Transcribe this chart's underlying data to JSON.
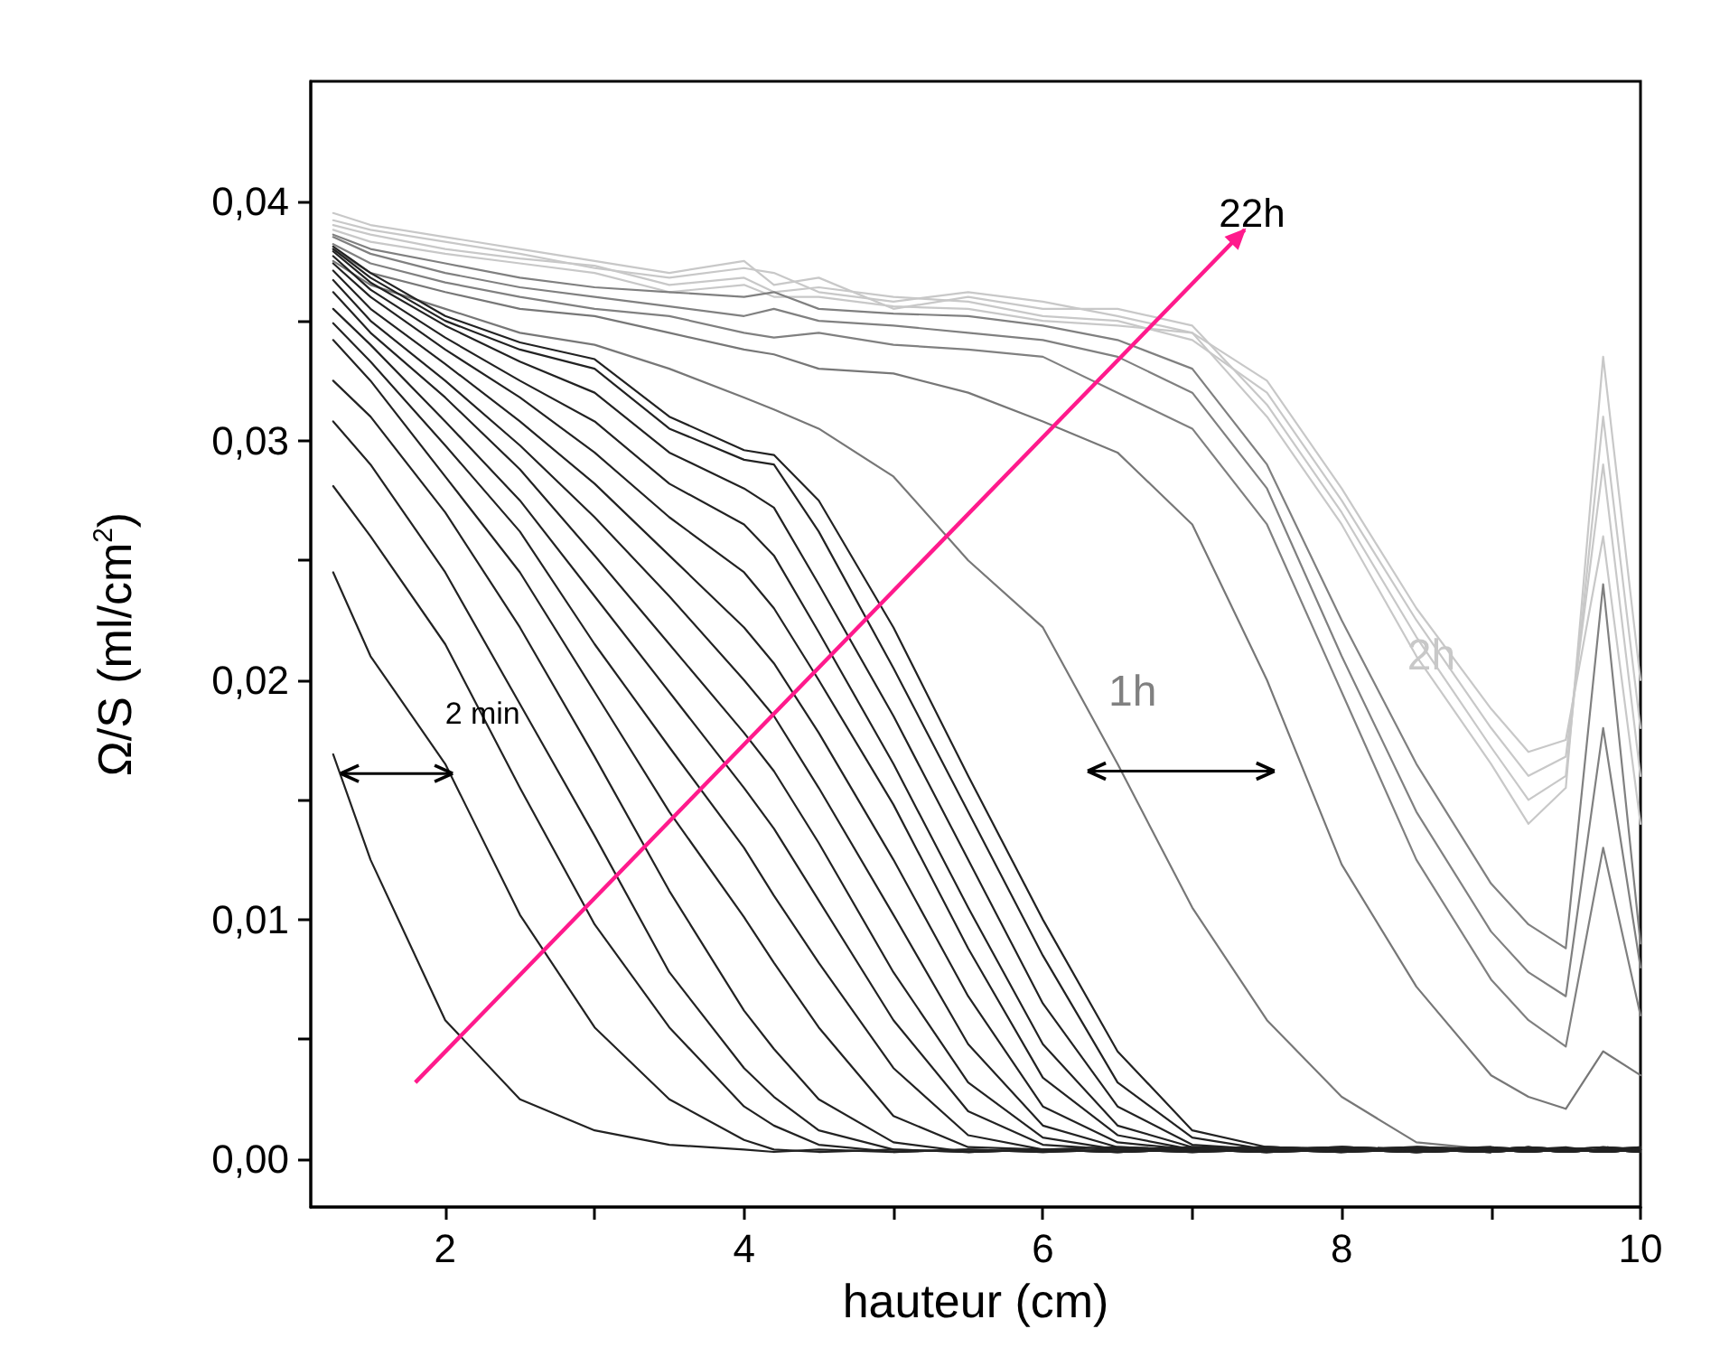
{
  "chart_data": {
    "type": "line",
    "xlabel": "hauteur (cm)",
    "ylabel": "Ω/S (ml/cm$^{2}$)",
    "xlim": [
      1.1,
      10
    ],
    "ylim": [
      -0.002,
      0.045
    ],
    "xticks": [
      2,
      4,
      6,
      8,
      10
    ],
    "yticks": [
      {
        "value": 0,
        "label": "0,00"
      },
      {
        "value": 0.01,
        "label": "0,01"
      },
      {
        "value": 0.02,
        "label": "0,02"
      },
      {
        "value": 0.03,
        "label": "0,03"
      },
      {
        "value": 0.04,
        "label": "0,04"
      }
    ],
    "grid": false,
    "marker": "none",
    "line_style": "solid",
    "annotations": [
      "22h",
      "2h",
      "1h",
      "2 min"
    ],
    "x": [
      1.25,
      1.5,
      2,
      2.5,
      3,
      3.5,
      4,
      4.2,
      4.5,
      5,
      5.5,
      6,
      6.5,
      7,
      7.5,
      8,
      8.5,
      9,
      9.25,
      9.5,
      9.75,
      10
    ],
    "series": [
      {
        "color": "#c8c8c8",
        "values": [
          0.0392,
          0.0388,
          0.0383,
          0.0378,
          0.0372,
          0.0368,
          0.0372,
          0.037,
          0.0362,
          0.0358,
          0.0362,
          0.0358,
          0.0352,
          0.0345,
          0.031,
          0.0265,
          0.021,
          0.0165,
          0.014,
          0.0155,
          0.0335,
          0.02
        ]
      },
      {
        "color": "#c8c8c8",
        "values": [
          0.0395,
          0.039,
          0.0385,
          0.038,
          0.0375,
          0.037,
          0.0375,
          0.0365,
          0.0368,
          0.0355,
          0.036,
          0.0355,
          0.0355,
          0.0348,
          0.0315,
          0.027,
          0.0218,
          0.0172,
          0.015,
          0.016,
          0.031,
          0.018
        ]
      },
      {
        "color": "#c8c8c8",
        "values": [
          0.039,
          0.0386,
          0.038,
          0.0376,
          0.0373,
          0.0365,
          0.0368,
          0.0362,
          0.0364,
          0.036,
          0.0358,
          0.0352,
          0.035,
          0.0342,
          0.032,
          0.0275,
          0.0225,
          0.018,
          0.016,
          0.0168,
          0.029,
          0.016
        ]
      },
      {
        "color": "#c8c8c8",
        "values": [
          0.0388,
          0.0383,
          0.0378,
          0.0374,
          0.037,
          0.0362,
          0.0365,
          0.036,
          0.036,
          0.0356,
          0.0355,
          0.035,
          0.0348,
          0.0345,
          0.0325,
          0.028,
          0.023,
          0.0188,
          0.017,
          0.0175,
          0.026,
          0.014
        ]
      },
      {
        "color": "#808080",
        "values": [
          0.0386,
          0.038,
          0.0374,
          0.0368,
          0.0364,
          0.0362,
          0.036,
          0.0362,
          0.0355,
          0.0353,
          0.0352,
          0.0348,
          0.0342,
          0.033,
          0.029,
          0.0225,
          0.0165,
          0.0115,
          0.0098,
          0.0088,
          0.024,
          0.009
        ]
      },
      {
        "color": "#808080",
        "values": [
          0.0385,
          0.0378,
          0.037,
          0.0364,
          0.036,
          0.0356,
          0.0352,
          0.0355,
          0.035,
          0.0348,
          0.0345,
          0.0342,
          0.0335,
          0.032,
          0.028,
          0.021,
          0.0145,
          0.0095,
          0.0078,
          0.0068,
          0.018,
          0.008
        ]
      },
      {
        "color": "#808080",
        "values": [
          0.0382,
          0.0374,
          0.0366,
          0.036,
          0.0355,
          0.0352,
          0.0345,
          0.0343,
          0.0345,
          0.034,
          0.0338,
          0.0335,
          0.032,
          0.0305,
          0.0265,
          0.0195,
          0.0125,
          0.0075,
          0.0058,
          0.0047,
          0.013,
          0.006
        ]
      },
      {
        "color": "#777777",
        "values": [
          0.038,
          0.037,
          0.0362,
          0.0355,
          0.0352,
          0.0345,
          0.0338,
          0.0336,
          0.033,
          0.0328,
          0.032,
          0.0308,
          0.0295,
          0.0265,
          0.02,
          0.0123,
          0.0072,
          0.0035,
          0.0026,
          0.0021,
          0.0045,
          0.0035
        ]
      },
      {
        "color": "#777777",
        "values": [
          0.0375,
          0.0365,
          0.0355,
          0.0345,
          0.034,
          0.033,
          0.0318,
          0.0313,
          0.0305,
          0.0285,
          0.025,
          0.0222,
          0.0165,
          0.0105,
          0.0058,
          0.0026,
          0.0007,
          0.0004,
          0.0005,
          0.0004,
          0.0005,
          0.0004
        ]
      },
      {
        "color": "#222222",
        "values": [
          0.0381,
          0.037,
          0.0352,
          0.0341,
          0.0334,
          0.031,
          0.0296,
          0.0294,
          0.0275,
          0.0222,
          0.016,
          0.01,
          0.0045,
          0.0012,
          0.0005,
          0.0004,
          0.0003,
          0.0004,
          0.0005,
          0.0004,
          0.0003,
          0.0004
        ]
      },
      {
        "color": "#222222",
        "values": [
          0.038,
          0.0368,
          0.035,
          0.0338,
          0.033,
          0.0305,
          0.0292,
          0.029,
          0.0262,
          0.0205,
          0.0145,
          0.0085,
          0.0032,
          0.0009,
          0.0004,
          0.0003,
          0.0004,
          0.0005,
          0.0004,
          0.0003,
          0.0004,
          0.0003
        ]
      },
      {
        "color": "#222222",
        "values": [
          0.0379,
          0.0366,
          0.0348,
          0.0333,
          0.032,
          0.0295,
          0.028,
          0.0272,
          0.024,
          0.0185,
          0.0125,
          0.0065,
          0.0022,
          0.0006,
          0.0004,
          0.0005,
          0.0004,
          0.0003,
          0.0004,
          0.0003,
          0.0004,
          0.0005
        ]
      },
      {
        "color": "#222222",
        "values": [
          0.0377,
          0.0363,
          0.0343,
          0.0325,
          0.0308,
          0.0282,
          0.0265,
          0.0252,
          0.022,
          0.0165,
          0.0105,
          0.0048,
          0.0014,
          0.0005,
          0.0004,
          0.0003,
          0.0004,
          0.0005,
          0.0004,
          0.0003,
          0.0004,
          0.0003
        ]
      },
      {
        "color": "#222222",
        "values": [
          0.0374,
          0.036,
          0.0338,
          0.0318,
          0.0295,
          0.0268,
          0.0245,
          0.023,
          0.02,
          0.0148,
          0.0088,
          0.0034,
          0.001,
          0.0004,
          0.0003,
          0.0004,
          0.0003,
          0.0004,
          0.0005,
          0.0004,
          0.0003,
          0.0004
        ]
      },
      {
        "color": "#222222",
        "values": [
          0.0371,
          0.0355,
          0.0332,
          0.0308,
          0.0282,
          0.0252,
          0.0222,
          0.0207,
          0.0178,
          0.0125,
          0.0068,
          0.0022,
          0.0007,
          0.0004,
          0.0003,
          0.0004,
          0.0005,
          0.0004,
          0.0003,
          0.0004,
          0.0005,
          0.0004
        ]
      },
      {
        "color": "#222222",
        "values": [
          0.0367,
          0.035,
          0.0325,
          0.0298,
          0.0268,
          0.0235,
          0.02,
          0.0185,
          0.0155,
          0.0102,
          0.0048,
          0.0014,
          0.0005,
          0.0004,
          0.0003,
          0.0004,
          0.0003,
          0.0004,
          0.0005,
          0.0004,
          0.0003,
          0.0004
        ]
      },
      {
        "color": "#222222",
        "values": [
          0.0362,
          0.0345,
          0.0318,
          0.0288,
          0.0252,
          0.0215,
          0.0178,
          0.0162,
          0.0132,
          0.0078,
          0.0032,
          0.0009,
          0.0004,
          0.0003,
          0.0004,
          0.0003,
          0.0005,
          0.0004,
          0.0003,
          0.0004,
          0.0003,
          0.0004
        ]
      },
      {
        "color": "#222222",
        "values": [
          0.0355,
          0.034,
          0.0308,
          0.0275,
          0.0235,
          0.0195,
          0.0155,
          0.0138,
          0.0108,
          0.0058,
          0.002,
          0.0006,
          0.0004,
          0.0003,
          0.0004,
          0.0005,
          0.0004,
          0.0003,
          0.0004,
          0.0005,
          0.0003,
          0.0004
        ]
      },
      {
        "color": "#222222",
        "values": [
          0.0349,
          0.0333,
          0.0298,
          0.0262,
          0.0215,
          0.0172,
          0.013,
          0.011,
          0.0082,
          0.0038,
          0.001,
          0.0004,
          0.0003,
          0.0004,
          0.0005,
          0.0004,
          0.0003,
          0.0004,
          0.0003,
          0.0004,
          0.0005,
          0.0004
        ]
      },
      {
        "color": "#222222",
        "values": [
          0.0342,
          0.0325,
          0.0285,
          0.0245,
          0.0195,
          0.0145,
          0.0101,
          0.0082,
          0.0055,
          0.0018,
          0.0005,
          0.0004,
          0.0003,
          0.0004,
          0.0003,
          0.0005,
          0.0004,
          0.0003,
          0.0004,
          0.0003,
          0.0004,
          0.0005
        ]
      },
      {
        "color": "#222222",
        "values": [
          0.0325,
          0.031,
          0.027,
          0.0222,
          0.0168,
          0.0112,
          0.0062,
          0.0046,
          0.0025,
          0.0007,
          0.0003,
          0.0004,
          0.0003,
          0.0004,
          0.0005,
          0.0004,
          0.0003,
          0.0004,
          0.0005,
          0.0003,
          0.0004,
          0.0003
        ]
      },
      {
        "color": "#222222",
        "values": [
          0.0308,
          0.029,
          0.0245,
          0.019,
          0.0135,
          0.0078,
          0.0038,
          0.0026,
          0.0012,
          0.0004,
          0.0003,
          0.0004,
          0.0005,
          0.0004,
          0.0003,
          0.0004,
          0.0005,
          0.0004,
          0.0003,
          0.0004,
          0.0003,
          0.0004
        ]
      },
      {
        "color": "#222222",
        "values": [
          0.0281,
          0.026,
          0.0215,
          0.0155,
          0.0098,
          0.0055,
          0.0022,
          0.0014,
          0.0006,
          0.0003,
          0.0004,
          0.0003,
          0.0004,
          0.0005,
          0.0004,
          0.0003,
          0.0004,
          0.0003,
          0.0004,
          0.0003,
          0.0004,
          0.0003
        ]
      },
      {
        "color": "#222222",
        "values": [
          0.0245,
          0.021,
          0.0165,
          0.0102,
          0.0055,
          0.0025,
          0.0008,
          0.0004,
          0.0003,
          0.0004,
          0.0003,
          0.0004,
          0.0003,
          0.0004,
          0.0005,
          0.0004,
          0.0003,
          0.0004,
          0.0003,
          0.0004,
          0.0003,
          0.0004
        ]
      },
      {
        "color": "#222222",
        "values": [
          0.0169,
          0.0125,
          0.0058,
          0.0025,
          0.0012,
          0.0006,
          0.0004,
          0.0003,
          0.0004,
          0.0003,
          0.0004,
          0.0003,
          0.0004,
          0.0003,
          0.0004,
          0.0005,
          0.0004,
          0.0003,
          0.0004,
          0.0003,
          0.0004,
          0.0003
        ]
      }
    ]
  }
}
